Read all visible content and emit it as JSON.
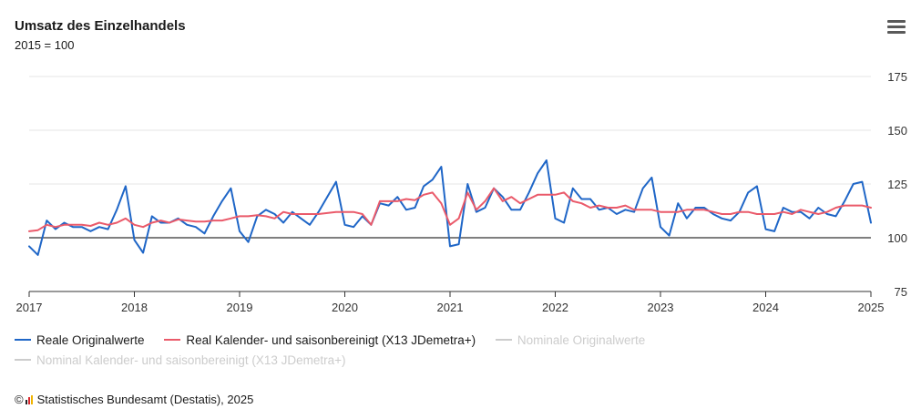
{
  "header": {
    "title": "Umsatz des Einzelhandels",
    "subtitle": "2015 = 100"
  },
  "menu": {
    "icon": "hamburger-menu-icon"
  },
  "legend": [
    {
      "label": "Reale Originalwerte",
      "color": "#1f66c7",
      "visible": true
    },
    {
      "label": "Real Kalender- und saisonbereinigt (X13 JDemetra+)",
      "color": "#ea5a6a",
      "visible": true
    },
    {
      "label": "Nominale Originalwerte",
      "color": "#cccccc",
      "visible": false
    },
    {
      "label": "Nominal Kalender- und saisonbereinigt (X13 JDemetra+)",
      "color": "#cccccc",
      "visible": false
    }
  ],
  "footer": {
    "copyright": "©",
    "source": "Statistisches Bundesamt (Destatis), 2025"
  },
  "chart_data": {
    "type": "line",
    "title": "Umsatz des Einzelhandels",
    "subtitle": "2015 = 100",
    "x_labels": [
      "2017",
      "2018",
      "2019",
      "2020",
      "2021",
      "2022",
      "2023",
      "2024",
      "2025"
    ],
    "xlim": [
      2017,
      2025
    ],
    "ylim": [
      75,
      175
    ],
    "y_ticks": [
      75,
      100,
      125,
      150,
      175
    ],
    "y_tick_labels": [
      "75",
      "100",
      "125",
      "150",
      "175"
    ],
    "y_axis_position": "right",
    "reference_line": 100,
    "grid": true,
    "legend_position": "bottom",
    "series": [
      {
        "name": "Reale Originalwerte",
        "color": "#1f66c7",
        "start": "2017-01",
        "values": [
          96,
          92,
          108,
          104,
          107,
          105,
          105,
          103,
          105,
          104,
          113,
          124,
          99,
          93,
          110,
          107,
          107,
          109,
          106,
          105,
          102,
          110,
          117,
          123,
          103,
          98,
          110,
          113,
          111,
          107,
          112,
          109,
          106,
          112,
          119,
          126,
          106,
          105,
          110,
          106,
          116,
          115,
          119,
          113,
          114,
          124,
          127,
          133,
          96,
          97,
          125,
          112,
          114,
          123,
          119,
          113,
          113,
          121,
          130,
          136,
          109,
          107,
          123,
          118,
          118,
          113,
          114,
          111,
          113,
          112,
          123,
          128,
          105,
          101,
          116,
          109,
          114,
          114,
          111,
          109,
          108,
          112,
          121,
          124,
          104,
          103,
          114,
          112,
          112,
          109,
          114,
          111,
          110,
          117,
          125,
          126,
          107
        ]
      },
      {
        "name": "Real Kalender- und saisonbereinigt (X13 JDemetra+)",
        "color": "#ea5a6a",
        "start": "2017-01",
        "values": [
          103,
          103.5,
          106,
          105,
          106,
          106,
          106,
          105.5,
          107,
          106,
          107,
          109,
          106,
          105,
          107,
          108,
          107,
          108.5,
          108,
          107.5,
          107.5,
          108,
          108,
          109,
          110,
          110,
          110.5,
          110,
          109,
          112,
          111,
          111,
          111,
          111,
          111.5,
          112,
          112,
          112,
          111,
          106,
          117,
          117,
          117,
          118,
          117.5,
          120,
          121,
          116,
          106,
          109,
          121,
          113,
          117,
          123,
          117,
          119,
          116,
          118,
          120,
          120,
          120,
          121,
          117,
          116,
          114,
          115,
          114,
          114,
          115,
          113,
          113,
          113,
          112,
          112,
          112,
          113,
          113,
          113,
          112,
          111,
          111,
          112,
          112,
          111,
          111,
          111,
          112,
          111,
          113,
          112,
          111,
          112,
          114,
          115,
          115,
          115,
          114
        ]
      },
      {
        "name": "Nominale Originalwerte",
        "visible": false
      },
      {
        "name": "Nominal Kalender- und saisonbereinigt (X13 JDemetra+)",
        "visible": false
      }
    ]
  }
}
